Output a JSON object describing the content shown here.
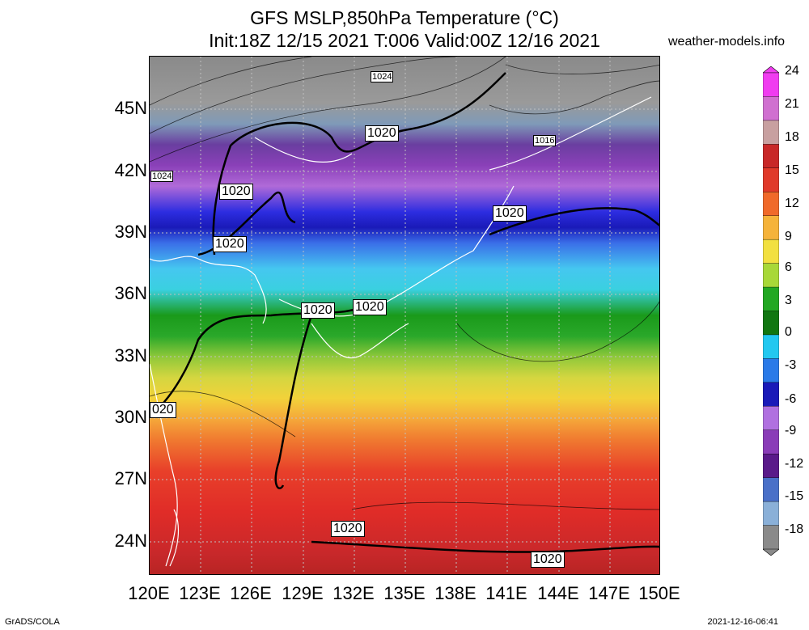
{
  "title": {
    "line1": "GFS MSLP,850hPa Temperature (°C)",
    "line2": "Init:18Z 12/15 2021 T:006 Valid:00Z 12/16 2021"
  },
  "site": "weather-models.info",
  "axes": {
    "lat_labels": [
      "45N",
      "42N",
      "39N",
      "36N",
      "33N",
      "30N",
      "27N",
      "24N"
    ],
    "lon_labels": [
      "120E",
      "123E",
      "126E",
      "129E",
      "132E",
      "135E",
      "138E",
      "141E",
      "144E",
      "147E",
      "150E"
    ]
  },
  "isobar_labels": [
    "1024",
    "1020",
    "1016",
    "1024",
    "1020",
    "1020",
    "1020",
    "1020",
    "1020",
    "020",
    "1020",
    "1020"
  ],
  "colorbar": {
    "labels": [
      "24",
      "21",
      "18",
      "15",
      "12",
      "9",
      "6",
      "3",
      "0",
      "-3",
      "-6",
      "-9",
      "-12",
      "-15",
      "-18"
    ],
    "colors": [
      "#f03cf0",
      "#d070d0",
      "#c8a0a0",
      "#c82828",
      "#e03a2a",
      "#f06a2a",
      "#f5b33a",
      "#f2e040",
      "#a8d838",
      "#22a822",
      "#117711",
      "#22c8f0",
      "#2a7ae8",
      "#1a1ab8",
      "#b070e0",
      "#8a3cb8",
      "#5a1a8a",
      "#4a70c8",
      "#8ab0d8",
      "#8a8a8a"
    ]
  },
  "footer": {
    "left": "GrADS/COLA",
    "right": "2021-12-16-06:41"
  },
  "colors": {
    "coastline": "#ffffff",
    "isobar": "#000000",
    "grid": "#c0c0c0"
  }
}
